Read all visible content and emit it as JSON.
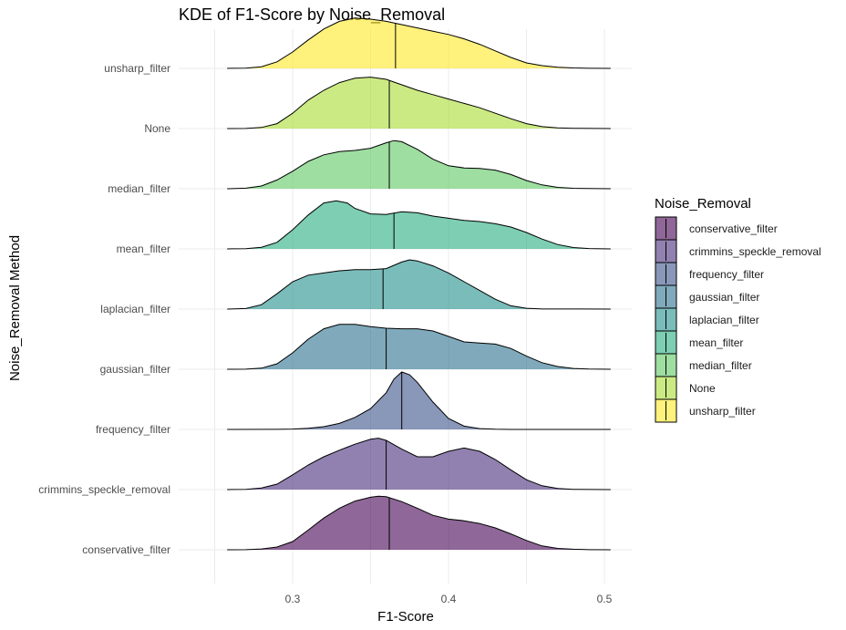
{
  "chart_data": {
    "type": "ridgeline-density",
    "title": "KDE of F1-Score by Noise_Removal",
    "xlabel": "F1-Score",
    "ylabel": "Noise_Removal Method",
    "xlim": [
      0.245,
      0.52
    ],
    "x_ticks": [
      0.3,
      0.4,
      0.5
    ],
    "x_tick_labels": [
      "0.3",
      "0.4",
      "0.5"
    ],
    "legend": {
      "title": "Noise_Removal",
      "position": "right",
      "entries": [
        "conservative_filter",
        "crimmins_speckle_removal",
        "frequency_filter",
        "gaussian_filter",
        "laplacian_filter",
        "mean_filter",
        "median_filter",
        "None",
        "unsharp_filter"
      ]
    },
    "grid": true,
    "x_range": [
      0.258,
      0.504
    ],
    "series": [
      {
        "name": "conservative_filter",
        "color": "#440154",
        "median": 0.362,
        "peak": 0.355,
        "density": [
          [
            0.258,
            0
          ],
          [
            0.27,
            0.003
          ],
          [
            0.28,
            0.015
          ],
          [
            0.29,
            0.05
          ],
          [
            0.3,
            0.15
          ],
          [
            0.31,
            0.36
          ],
          [
            0.32,
            0.58
          ],
          [
            0.33,
            0.76
          ],
          [
            0.34,
            0.89
          ],
          [
            0.35,
            0.96
          ],
          [
            0.355,
            0.98
          ],
          [
            0.36,
            0.97
          ],
          [
            0.37,
            0.88
          ],
          [
            0.38,
            0.76
          ],
          [
            0.39,
            0.63
          ],
          [
            0.4,
            0.56
          ],
          [
            0.41,
            0.53
          ],
          [
            0.42,
            0.48
          ],
          [
            0.43,
            0.4
          ],
          [
            0.44,
            0.29
          ],
          [
            0.45,
            0.17
          ],
          [
            0.46,
            0.07
          ],
          [
            0.47,
            0.025
          ],
          [
            0.48,
            0.01
          ],
          [
            0.49,
            0.003
          ],
          [
            0.504,
            0
          ]
        ]
      },
      {
        "name": "crimmins_speckle_removal",
        "color": "#472D7B",
        "median": 0.36,
        "peak": 0.355,
        "density": [
          [
            0.258,
            0
          ],
          [
            0.27,
            0.005
          ],
          [
            0.28,
            0.03
          ],
          [
            0.29,
            0.1
          ],
          [
            0.3,
            0.27
          ],
          [
            0.31,
            0.45
          ],
          [
            0.32,
            0.6
          ],
          [
            0.33,
            0.72
          ],
          [
            0.34,
            0.83
          ],
          [
            0.35,
            0.92
          ],
          [
            0.355,
            0.94
          ],
          [
            0.36,
            0.9
          ],
          [
            0.37,
            0.74
          ],
          [
            0.38,
            0.6
          ],
          [
            0.39,
            0.6
          ],
          [
            0.4,
            0.7
          ],
          [
            0.41,
            0.76
          ],
          [
            0.42,
            0.7
          ],
          [
            0.43,
            0.55
          ],
          [
            0.44,
            0.36
          ],
          [
            0.45,
            0.18
          ],
          [
            0.46,
            0.07
          ],
          [
            0.47,
            0.02
          ],
          [
            0.48,
            0.005
          ],
          [
            0.504,
            0
          ]
        ]
      },
      {
        "name": "frequency_filter",
        "color": "#3B528B",
        "median": 0.37,
        "peak": 0.37,
        "density": [
          [
            0.258,
            0
          ],
          [
            0.29,
            0.002
          ],
          [
            0.3,
            0.006
          ],
          [
            0.31,
            0.02
          ],
          [
            0.32,
            0.05
          ],
          [
            0.33,
            0.11
          ],
          [
            0.34,
            0.22
          ],
          [
            0.35,
            0.38
          ],
          [
            0.36,
            0.67
          ],
          [
            0.365,
            0.92
          ],
          [
            0.37,
            1.05
          ],
          [
            0.375,
            1.0
          ],
          [
            0.38,
            0.86
          ],
          [
            0.39,
            0.5
          ],
          [
            0.4,
            0.2
          ],
          [
            0.41,
            0.06
          ],
          [
            0.42,
            0.015
          ],
          [
            0.43,
            0.004
          ],
          [
            0.44,
            0.001
          ],
          [
            0.504,
            0
          ]
        ]
      },
      {
        "name": "gaussian_filter",
        "color": "#2C728E",
        "median": 0.36,
        "peak": 0.335,
        "density": [
          [
            0.258,
            0
          ],
          [
            0.27,
            0.003
          ],
          [
            0.28,
            0.02
          ],
          [
            0.29,
            0.1
          ],
          [
            0.3,
            0.3
          ],
          [
            0.31,
            0.55
          ],
          [
            0.32,
            0.74
          ],
          [
            0.33,
            0.82
          ],
          [
            0.34,
            0.82
          ],
          [
            0.35,
            0.78
          ],
          [
            0.36,
            0.75
          ],
          [
            0.37,
            0.74
          ],
          [
            0.38,
            0.74
          ],
          [
            0.39,
            0.7
          ],
          [
            0.4,
            0.6
          ],
          [
            0.41,
            0.5
          ],
          [
            0.42,
            0.48
          ],
          [
            0.43,
            0.46
          ],
          [
            0.44,
            0.38
          ],
          [
            0.45,
            0.24
          ],
          [
            0.46,
            0.12
          ],
          [
            0.47,
            0.05
          ],
          [
            0.48,
            0.015
          ],
          [
            0.49,
            0.005
          ],
          [
            0.504,
            0
          ]
        ]
      },
      {
        "name": "laplacian_filter",
        "color": "#21908C",
        "median": 0.358,
        "peak": 0.375,
        "density": [
          [
            0.258,
            0
          ],
          [
            0.27,
            0.01
          ],
          [
            0.28,
            0.08
          ],
          [
            0.29,
            0.28
          ],
          [
            0.3,
            0.5
          ],
          [
            0.31,
            0.62
          ],
          [
            0.32,
            0.66
          ],
          [
            0.33,
            0.7
          ],
          [
            0.34,
            0.72
          ],
          [
            0.35,
            0.72
          ],
          [
            0.36,
            0.74
          ],
          [
            0.37,
            0.86
          ],
          [
            0.375,
            0.9
          ],
          [
            0.38,
            0.88
          ],
          [
            0.39,
            0.79
          ],
          [
            0.4,
            0.66
          ],
          [
            0.41,
            0.5
          ],
          [
            0.42,
            0.34
          ],
          [
            0.43,
            0.18
          ],
          [
            0.44,
            0.06
          ],
          [
            0.45,
            0.015
          ],
          [
            0.46,
            0.003
          ],
          [
            0.504,
            0
          ]
        ]
      },
      {
        "name": "mean_filter",
        "color": "#27AD81",
        "median": 0.365,
        "peak": 0.328,
        "density": [
          [
            0.258,
            0
          ],
          [
            0.27,
            0.005
          ],
          [
            0.28,
            0.03
          ],
          [
            0.29,
            0.12
          ],
          [
            0.3,
            0.35
          ],
          [
            0.31,
            0.62
          ],
          [
            0.32,
            0.84
          ],
          [
            0.328,
            0.88
          ],
          [
            0.335,
            0.84
          ],
          [
            0.34,
            0.74
          ],
          [
            0.35,
            0.64
          ],
          [
            0.36,
            0.63
          ],
          [
            0.37,
            0.68
          ],
          [
            0.38,
            0.66
          ],
          [
            0.39,
            0.6
          ],
          [
            0.4,
            0.56
          ],
          [
            0.41,
            0.52
          ],
          [
            0.42,
            0.5
          ],
          [
            0.43,
            0.46
          ],
          [
            0.44,
            0.4
          ],
          [
            0.45,
            0.3
          ],
          [
            0.46,
            0.18
          ],
          [
            0.47,
            0.08
          ],
          [
            0.48,
            0.025
          ],
          [
            0.49,
            0.007
          ],
          [
            0.504,
            0
          ]
        ]
      },
      {
        "name": "median_filter",
        "color": "#5DC863",
        "median": 0.362,
        "peak": 0.365,
        "density": [
          [
            0.258,
            0
          ],
          [
            0.27,
            0.01
          ],
          [
            0.28,
            0.05
          ],
          [
            0.29,
            0.16
          ],
          [
            0.3,
            0.32
          ],
          [
            0.31,
            0.5
          ],
          [
            0.32,
            0.62
          ],
          [
            0.33,
            0.68
          ],
          [
            0.34,
            0.7
          ],
          [
            0.35,
            0.74
          ],
          [
            0.36,
            0.84
          ],
          [
            0.365,
            0.88
          ],
          [
            0.37,
            0.86
          ],
          [
            0.38,
            0.72
          ],
          [
            0.39,
            0.54
          ],
          [
            0.4,
            0.42
          ],
          [
            0.41,
            0.38
          ],
          [
            0.42,
            0.37
          ],
          [
            0.43,
            0.34
          ],
          [
            0.44,
            0.26
          ],
          [
            0.45,
            0.15
          ],
          [
            0.46,
            0.07
          ],
          [
            0.47,
            0.025
          ],
          [
            0.48,
            0.008
          ],
          [
            0.504,
            0
          ]
        ]
      },
      {
        "name": "None",
        "color": "#AADC32",
        "median": 0.362,
        "peak": 0.345,
        "density": [
          [
            0.258,
            0
          ],
          [
            0.27,
            0.003
          ],
          [
            0.28,
            0.02
          ],
          [
            0.29,
            0.09
          ],
          [
            0.3,
            0.28
          ],
          [
            0.31,
            0.52
          ],
          [
            0.32,
            0.7
          ],
          [
            0.33,
            0.84
          ],
          [
            0.34,
            0.92
          ],
          [
            0.35,
            0.94
          ],
          [
            0.36,
            0.9
          ],
          [
            0.37,
            0.8
          ],
          [
            0.38,
            0.7
          ],
          [
            0.39,
            0.62
          ],
          [
            0.4,
            0.54
          ],
          [
            0.41,
            0.46
          ],
          [
            0.42,
            0.38
          ],
          [
            0.43,
            0.28
          ],
          [
            0.44,
            0.18
          ],
          [
            0.45,
            0.09
          ],
          [
            0.46,
            0.035
          ],
          [
            0.47,
            0.012
          ],
          [
            0.48,
            0.004
          ],
          [
            0.504,
            0
          ]
        ]
      },
      {
        "name": "unsharp_filter",
        "color": "#FDE725",
        "median": 0.366,
        "peak": 0.34,
        "density": [
          [
            0.258,
            0
          ],
          [
            0.27,
            0.005
          ],
          [
            0.28,
            0.03
          ],
          [
            0.29,
            0.12
          ],
          [
            0.3,
            0.3
          ],
          [
            0.31,
            0.52
          ],
          [
            0.32,
            0.72
          ],
          [
            0.33,
            0.86
          ],
          [
            0.34,
            0.92
          ],
          [
            0.35,
            0.9
          ],
          [
            0.36,
            0.86
          ],
          [
            0.37,
            0.8
          ],
          [
            0.38,
            0.74
          ],
          [
            0.39,
            0.68
          ],
          [
            0.4,
            0.62
          ],
          [
            0.41,
            0.54
          ],
          [
            0.42,
            0.44
          ],
          [
            0.43,
            0.32
          ],
          [
            0.44,
            0.2
          ],
          [
            0.45,
            0.1
          ],
          [
            0.46,
            0.05
          ],
          [
            0.47,
            0.02
          ],
          [
            0.48,
            0.008
          ],
          [
            0.49,
            0.003
          ],
          [
            0.504,
            0
          ]
        ]
      }
    ]
  }
}
